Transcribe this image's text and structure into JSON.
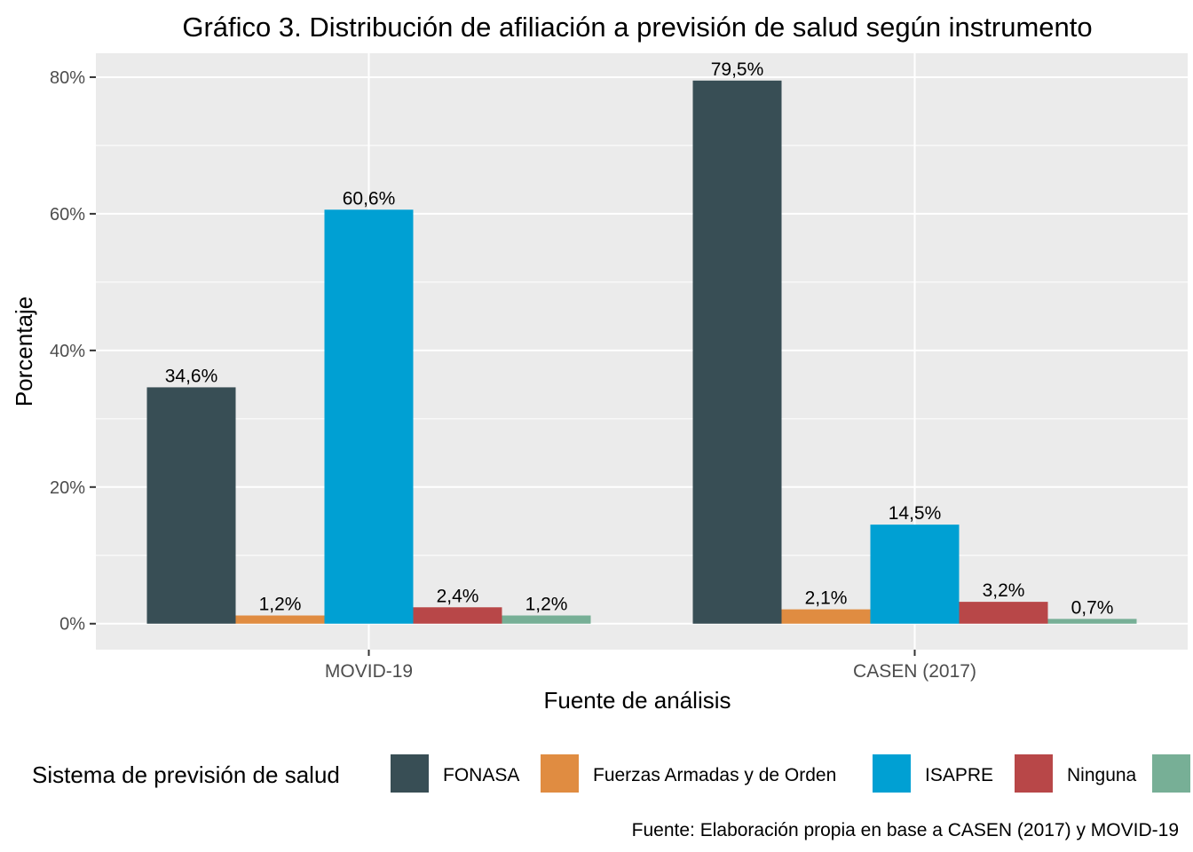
{
  "chart_data": {
    "type": "bar",
    "title": "Gráfico 3. Distribución de afiliación a previsión de salud según instrumento",
    "xlabel": "Fuente de análisis",
    "ylabel": "Porcentaje",
    "categories": [
      "MOVID-19",
      "CASEN (2017)"
    ],
    "series": [
      {
        "name": "FONASA",
        "values": [
          34.6,
          79.5
        ],
        "labels": [
          "34,6%",
          "79,5%"
        ],
        "color": "#384E55"
      },
      {
        "name": "Fuerzas Armadas y de Orden",
        "values": [
          1.2,
          2.1
        ],
        "labels": [
          "1,2%",
          "2,1%"
        ],
        "color": "#E08C41"
      },
      {
        "name": "ISAPRE",
        "values": [
          60.6,
          14.5
        ],
        "labels": [
          "60,6%",
          "14,5%"
        ],
        "color": "#00A0D3"
      },
      {
        "name": "Ninguna",
        "values": [
          2.4,
          3.2
        ],
        "labels": [
          "2,4%",
          "3,2%"
        ],
        "color": "#B84748"
      },
      {
        "name": "",
        "values": [
          1.2,
          0.7
        ],
        "labels": [
          "1,2%",
          "0,7%"
        ],
        "color": "#77AF96"
      }
    ],
    "ylim": [
      -3.8,
      83.5
    ],
    "yticks": [
      0,
      20,
      40,
      60,
      80
    ],
    "ytick_labels": [
      "0%",
      "20%",
      "40%",
      "60%",
      "80%"
    ],
    "grid": true,
    "legend_title": "Sistema de previsión de salud",
    "legend_position": "bottom",
    "caption": "Fuente: Elaboración propia en base a CASEN (2017) y MOVID-19",
    "panel_color": "#EBEBEB"
  }
}
